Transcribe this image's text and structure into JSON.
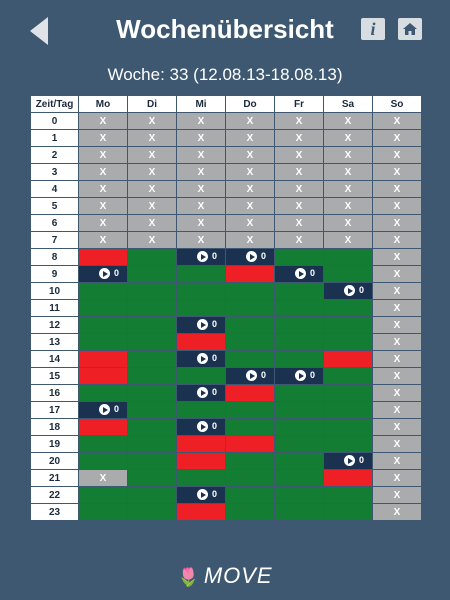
{
  "header": {
    "title": "Wochenübersicht",
    "info_label": "i",
    "back_icon": "back-arrow-icon",
    "home_icon": "home-icon"
  },
  "week_label": "Woche: 33 (12.08.13-18.08.13)",
  "grid": {
    "corner": "Zeit/Tag",
    "days": [
      "Mo",
      "Di",
      "Mi",
      "Do",
      "Fr",
      "Sa",
      "So"
    ],
    "hours": [
      "0",
      "1",
      "2",
      "3",
      "4",
      "5",
      "6",
      "7",
      "8",
      "9",
      "10",
      "11",
      "12",
      "13",
      "14",
      "15",
      "16",
      "17",
      "18",
      "19",
      "20",
      "21",
      "22",
      "23"
    ],
    "x_mark": "X",
    "colors": {
      "unavailable": "#a9abad",
      "free": "#127d33",
      "booked": "#ee1f25",
      "counter": "#1a3250"
    },
    "legend_codes": {
      "x": "unavailable",
      "g": "free",
      "r": "booked",
      "p": "counter"
    },
    "rows": [
      [
        "x",
        "x",
        "x",
        "x",
        "x",
        "x",
        "x"
      ],
      [
        "x",
        "x",
        "x",
        "x",
        "x",
        "x",
        "x"
      ],
      [
        "x",
        "x",
        "x",
        "x",
        "x",
        "x",
        "x"
      ],
      [
        "x",
        "x",
        "x",
        "x",
        "x",
        "x",
        "x"
      ],
      [
        "x",
        "x",
        "x",
        "x",
        "x",
        "x",
        "x"
      ],
      [
        "x",
        "x",
        "x",
        "x",
        "x",
        "x",
        "x"
      ],
      [
        "x",
        "x",
        "x",
        "x",
        "x",
        "x",
        "x"
      ],
      [
        "x",
        "x",
        "x",
        "x",
        "x",
        "x",
        "x"
      ],
      [
        "r",
        "g",
        "p",
        "p",
        "g",
        "g",
        "x"
      ],
      [
        "p",
        "g",
        "g",
        "r",
        "p",
        "g",
        "x"
      ],
      [
        "g",
        "g",
        "g",
        "g",
        "g",
        "p",
        "x"
      ],
      [
        "g",
        "g",
        "g",
        "g",
        "g",
        "g",
        "x"
      ],
      [
        "g",
        "g",
        "p",
        "g",
        "g",
        "g",
        "x"
      ],
      [
        "g",
        "g",
        "r",
        "g",
        "g",
        "g",
        "x"
      ],
      [
        "r",
        "g",
        "p",
        "g",
        "g",
        "r",
        "x"
      ],
      [
        "r",
        "g",
        "g",
        "p",
        "p",
        "g",
        "x"
      ],
      [
        "g",
        "g",
        "p",
        "r",
        "g",
        "g",
        "x"
      ],
      [
        "p",
        "g",
        "g",
        "g",
        "g",
        "g",
        "x"
      ],
      [
        "r",
        "g",
        "p",
        "g",
        "g",
        "g",
        "x"
      ],
      [
        "g",
        "g",
        "r",
        "r",
        "g",
        "g",
        "x"
      ],
      [
        "g",
        "g",
        "r",
        "g",
        "g",
        "p",
        "x"
      ],
      [
        "x",
        "g",
        "g",
        "g",
        "g",
        "r",
        "x"
      ],
      [
        "g",
        "g",
        "p",
        "g",
        "g",
        "g",
        "x"
      ],
      [
        "g",
        "g",
        "r",
        "g",
        "g",
        "g",
        "x"
      ]
    ],
    "counter_value": "0"
  },
  "footer": {
    "logo_text": "MOVE"
  }
}
